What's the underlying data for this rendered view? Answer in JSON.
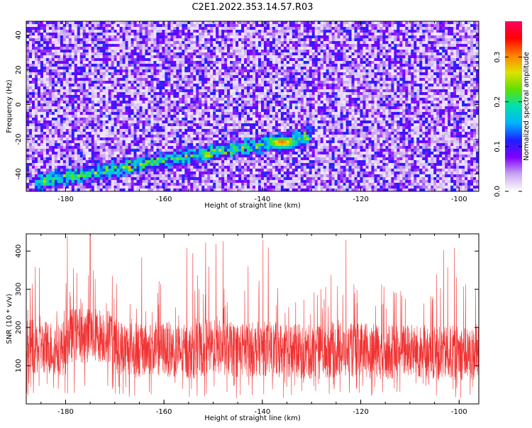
{
  "title": "C2E1.2022.353.14.57.R03",
  "colors": {
    "snr_line": "#f03232",
    "axis": "#000000",
    "colormap": [
      "#ffffff",
      "#c9a7f0",
      "#8000ff",
      "#1f1fff",
      "#00b4ff",
      "#00e0b0",
      "#60e000",
      "#e0e000",
      "#ff8000",
      "#ff0000",
      "#ff0060"
    ]
  },
  "chart_data": [
    {
      "type": "heatmap",
      "xlabel": "Height of straight line (km)",
      "ylabel": "Frequency (Hz)",
      "xlim": [
        -188,
        -96
      ],
      "ylim": [
        -50,
        48
      ],
      "xticks": [
        -180,
        -160,
        -140,
        -120,
        -100
      ],
      "yticks": [
        40,
        20,
        0,
        -20,
        -40
      ],
      "colorbar": {
        "label": "Normalized spectral amplitude",
        "range": [
          0.0,
          0.38
        ],
        "ticks": [
          0.0,
          0.1,
          0.2,
          0.3
        ]
      },
      "notable_features": [
        {
          "description": "diagonal high-amplitude streak",
          "from": [
            -186,
            -45
          ],
          "to": [
            -130,
            -18
          ]
        },
        {
          "peak_x": -136,
          "peak_y": -22,
          "peak_value": 0.34
        }
      ]
    },
    {
      "type": "line",
      "xlabel": "Height of straight line (km)",
      "ylabel": "SNR (10 * v/v)",
      "xlim": [
        -188,
        -96
      ],
      "ylim": [
        0,
        445
      ],
      "xticks": [
        -180,
        -160,
        -140,
        -120,
        -100
      ],
      "yticks": [
        100,
        200,
        300,
        400
      ],
      "series": [
        {
          "baseline_mean": 140,
          "baseline_spread": 60,
          "max_value": 440,
          "x": [
            -188,
            -180,
            -175,
            -170,
            -165,
            -160,
            -155,
            -150,
            -145,
            -140,
            -135,
            -130,
            -125,
            -120,
            -115,
            -110,
            -105,
            -100,
            -96
          ],
          "values": [
            150,
            145,
            440,
            150,
            140,
            145,
            135,
            150,
            140,
            145,
            140,
            135,
            140,
            140,
            135,
            140,
            130,
            135,
            130
          ]
        }
      ]
    }
  ]
}
